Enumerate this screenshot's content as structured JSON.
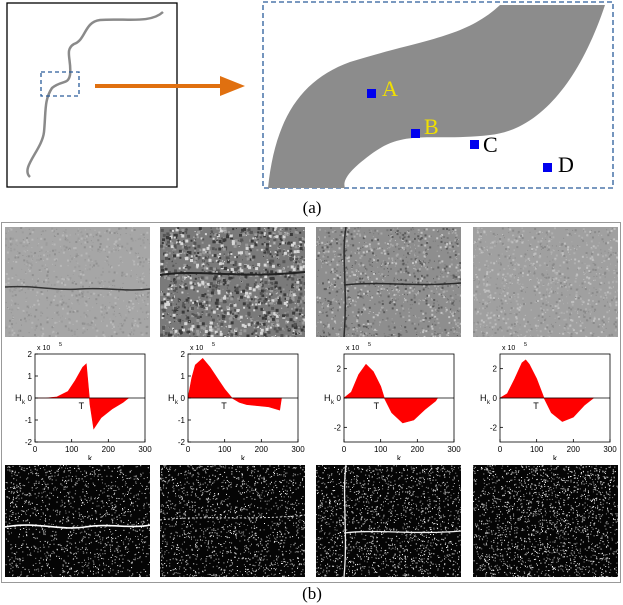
{
  "figure": {
    "caption_a": "(a)",
    "caption_b": "(b)",
    "points": [
      {
        "label": "A",
        "color": "#f0e000"
      },
      {
        "label": "B",
        "color": "#f0e000"
      },
      {
        "label": "C",
        "color": "#000000"
      },
      {
        "label": "D",
        "color": "#000000"
      }
    ],
    "colors": {
      "arrow": "#e07010",
      "marker": "#0000ee",
      "dashed_box": "#2a5c9a",
      "crack_region": "#8c8c8c",
      "histogram_fill": "#ff0000"
    }
  },
  "chart_data": [
    {
      "type": "area",
      "x": [
        0,
        30,
        60,
        90,
        110,
        130,
        140,
        150,
        160,
        180,
        210,
        240,
        255
      ],
      "y": [
        0,
        0,
        0.05,
        0.3,
        0.8,
        1.4,
        1.55,
        -0.3,
        -1.4,
        -0.9,
        -0.5,
        -0.2,
        0
      ],
      "xlabel": "k",
      "ylabel": "H",
      "ylabel_sub": "k",
      "exponent": "x 10",
      "exponent_power": "5",
      "xlim": [
        0,
        300
      ],
      "ylim": [
        -2,
        2
      ],
      "xticks": [
        "0",
        "100",
        "200",
        "300"
      ],
      "yticks": [
        "-2",
        "-1",
        "0",
        "1",
        "2"
      ],
      "annotation": "T"
    },
    {
      "type": "area",
      "x": [
        0,
        10,
        20,
        40,
        60,
        80,
        100,
        120,
        140,
        160,
        190,
        220,
        250,
        255
      ],
      "y": [
        0,
        0.9,
        1.5,
        1.8,
        1.4,
        0.9,
        0.4,
        0,
        -0.2,
        -0.3,
        -0.35,
        -0.4,
        -0.55,
        0
      ],
      "xlabel": "k",
      "ylabel": "H",
      "ylabel_sub": "k",
      "exponent": "x 10",
      "exponent_power": "5",
      "xlim": [
        0,
        300
      ],
      "ylim": [
        -2,
        2
      ],
      "xticks": [
        "0",
        "100",
        "200",
        "300"
      ],
      "yticks": [
        "-2",
        "-1",
        "0",
        "1",
        "2"
      ],
      "annotation": "T"
    },
    {
      "type": "area",
      "x": [
        0,
        20,
        40,
        60,
        80,
        100,
        110,
        130,
        160,
        190,
        220,
        250,
        255
      ],
      "y": [
        0,
        0.4,
        1.6,
        2.3,
        1.8,
        0.8,
        0,
        -1.0,
        -1.7,
        -1.5,
        -0.8,
        -0.2,
        0
      ],
      "xlabel": "k",
      "ylabel": "H",
      "ylabel_sub": "k",
      "exponent": "x 10",
      "exponent_power": "5",
      "xlim": [
        0,
        300
      ],
      "ylim": [
        -3,
        3
      ],
      "xticks": [
        "0",
        "100",
        "200",
        "300"
      ],
      "yticks": [
        "-2",
        "0",
        "2"
      ],
      "annotation": "T"
    },
    {
      "type": "area",
      "x": [
        0,
        20,
        40,
        60,
        70,
        80,
        100,
        120,
        140,
        170,
        200,
        230,
        255
      ],
      "y": [
        0,
        0.3,
        1.3,
        2.4,
        2.6,
        2.3,
        1.3,
        0,
        -1.0,
        -1.6,
        -1.3,
        -0.5,
        0
      ],
      "xlabel": "k",
      "ylabel": "H",
      "ylabel_sub": "k",
      "exponent": "x 10",
      "exponent_power": "5",
      "xlim": [
        0,
        300
      ],
      "ylim": [
        -3,
        3
      ],
      "xticks": [
        "0",
        "100",
        "200",
        "300"
      ],
      "yticks": [
        "-2",
        "0",
        "2"
      ],
      "annotation": "T"
    }
  ]
}
